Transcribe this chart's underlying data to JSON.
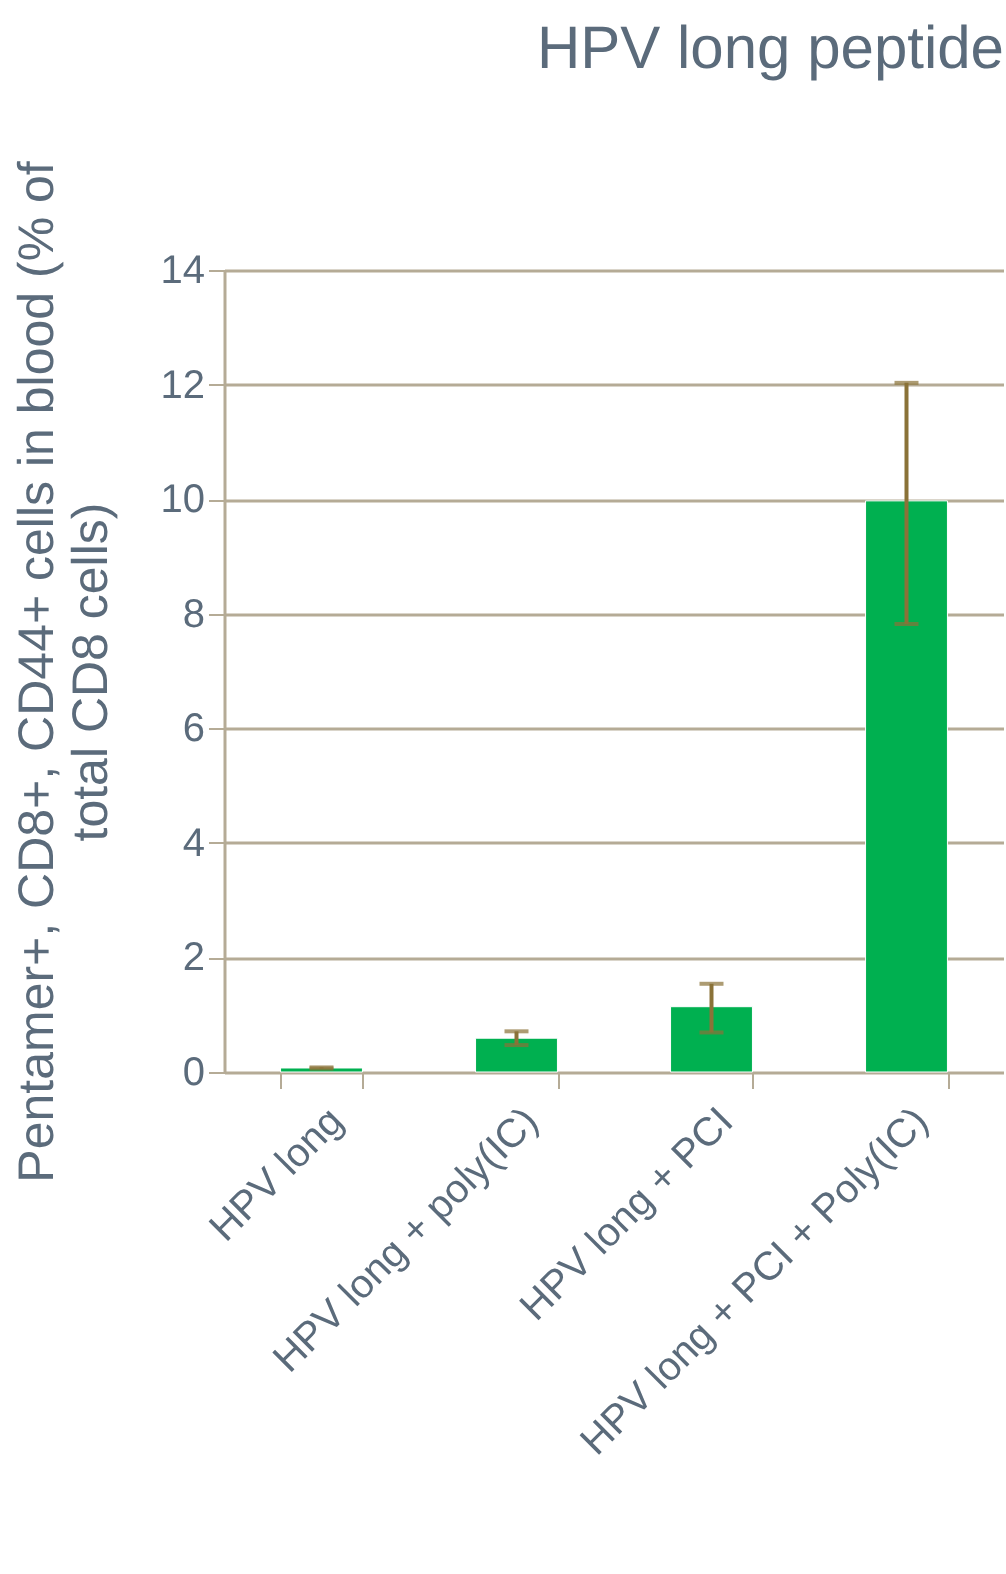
{
  "chart_data": {
    "type": "bar",
    "title": "HPV long peptide",
    "ylabel": "Pentamer+, CD8+, CD44+ cells in blood (% of total CD8 cells)",
    "categories": [
      "HPV long",
      "HPV long + poly(IC)",
      "HPV long + PCI",
      "HPV long + PCI + Poly(IC)"
    ],
    "values": [
      0.07,
      0.59,
      1.14,
      9.97
    ],
    "errors": [
      0.01,
      0.12,
      [
        0.69,
        1.54
      ],
      [
        7.82,
        12.03
      ]
    ],
    "color": "#00b050",
    "ylim": [
      0,
      14
    ],
    "yticks": [
      0,
      2,
      4,
      6,
      8,
      10,
      12,
      14
    ],
    "grid": "y"
  }
}
